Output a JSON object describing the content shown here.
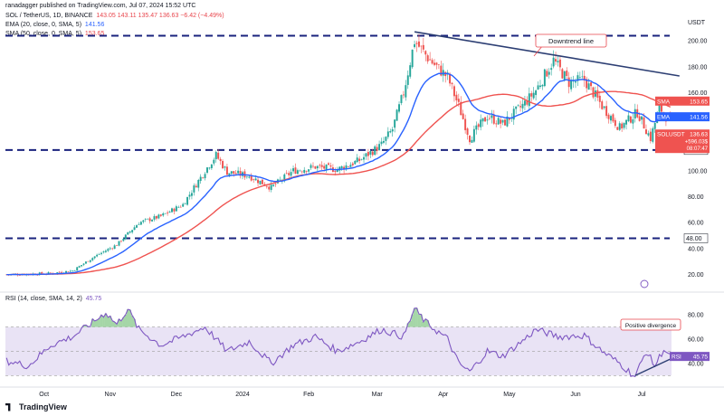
{
  "header": {
    "published": "ranadagger published on TradingView.com, Jul 07, 2024 15:52 UTC",
    "symbol_line": "SOL / TetherUS, 1D, BINANCE",
    "ohlc": "143.05  143.11  135.47  136.63  −6.42 (−4.49%)",
    "ema_line_label": "EMA (20, close, 0, SMA, 5)",
    "ema_line_value": "141.56",
    "sma_line_label": "SMA (50, close, 0, SMA, 5)",
    "sma_line_value": "153.65",
    "rsi_label": "RSI (14, close, SMA, 14, 2)",
    "rsi_value": "45.75",
    "currency": "USDT",
    "logo_text": "TradingView"
  },
  "colors": {
    "up": "#26a69a",
    "down": "#ef5350",
    "ema": "#2962ff",
    "sma": "#ef5350",
    "trend": "#2c3e73",
    "support": "#1a237e",
    "rsi": "#7e57c2",
    "rsi_band": "#e9e3f5"
  },
  "chart_data": [
    {
      "type": "candlestick",
      "title": "SOL / TetherUS, 1D, BINANCE",
      "x_labels": [
        "Oct",
        "Nov",
        "Dec",
        "2024",
        "Feb",
        "Mar",
        "Apr",
        "May",
        "Jun",
        "Jul"
      ],
      "price_ticks": [
        20,
        40,
        60,
        80,
        100,
        120,
        140,
        160,
        180,
        200
      ],
      "ylim": [
        10,
        212
      ],
      "anchors": [
        [
          0,
          20
        ],
        [
          20,
          21
        ],
        [
          30,
          23
        ],
        [
          40,
          34
        ],
        [
          50,
          43
        ],
        [
          60,
          60
        ],
        [
          70,
          65
        ],
        [
          80,
          74
        ],
        [
          90,
          100
        ],
        [
          95,
          112
        ],
        [
          100,
          99
        ],
        [
          110,
          96
        ],
        [
          120,
          87
        ],
        [
          130,
          100
        ],
        [
          140,
          103
        ],
        [
          150,
          101
        ],
        [
          160,
          108
        ],
        [
          170,
          120
        ],
        [
          175,
          132
        ],
        [
          180,
          160
        ],
        [
          185,
          200
        ],
        [
          192,
          185
        ],
        [
          200,
          172
        ],
        [
          205,
          150
        ],
        [
          210,
          125
        ],
        [
          218,
          142
        ],
        [
          225,
          136
        ],
        [
          235,
          152
        ],
        [
          240,
          162
        ],
        [
          248,
          185
        ],
        [
          255,
          168
        ],
        [
          262,
          170
        ],
        [
          270,
          150
        ],
        [
          278,
          133
        ],
        [
          286,
          145
        ],
        [
          292,
          125
        ],
        [
          296,
          149
        ],
        [
          301,
          137
        ]
      ],
      "candles_count": 302,
      "ema": {
        "name": "EMA",
        "last": "141.56"
      },
      "sma": {
        "name": "SMA",
        "last": "153.65"
      },
      "levels": [
        {
          "value": 204,
          "label": ""
        },
        {
          "value": 116,
          "label": "116.00"
        },
        {
          "value": 48,
          "label": "48.00"
        }
      ],
      "price_tags": [
        {
          "name": "SMA",
          "value": "153.65"
        },
        {
          "name": "EMA",
          "value": "141.56"
        },
        {
          "name": "SOLUSDT",
          "value": "136.63",
          "sub1": "+596.03$",
          "sub2": "08:07:47"
        }
      ],
      "annotations": [
        "Downtrend line",
        "Positive divergence"
      ]
    },
    {
      "type": "line",
      "title": "RSI (14, close, SMA, 14, 2)",
      "ticks": [
        40,
        60,
        80
      ],
      "ylim": [
        25,
        95
      ],
      "band": [
        30,
        70
      ],
      "last": "45.75",
      "anchors": [
        [
          0,
          42
        ],
        [
          10,
          38
        ],
        [
          20,
          55
        ],
        [
          30,
          62
        ],
        [
          40,
          75
        ],
        [
          45,
          82
        ],
        [
          50,
          72
        ],
        [
          55,
          85
        ],
        [
          60,
          68
        ],
        [
          70,
          55
        ],
        [
          80,
          62
        ],
        [
          90,
          70
        ],
        [
          100,
          50
        ],
        [
          110,
          58
        ],
        [
          120,
          40
        ],
        [
          130,
          55
        ],
        [
          140,
          62
        ],
        [
          150,
          50
        ],
        [
          160,
          58
        ],
        [
          170,
          68
        ],
        [
          180,
          62
        ],
        [
          185,
          85
        ],
        [
          190,
          74
        ],
        [
          200,
          60
        ],
        [
          205,
          40
        ],
        [
          210,
          33
        ],
        [
          218,
          50
        ],
        [
          225,
          46
        ],
        [
          235,
          60
        ],
        [
          240,
          68
        ],
        [
          250,
          62
        ],
        [
          262,
          63
        ],
        [
          270,
          50
        ],
        [
          278,
          40
        ],
        [
          285,
          29
        ],
        [
          290,
          50
        ],
        [
          294,
          38
        ],
        [
          298,
          52
        ],
        [
          301,
          45
        ]
      ]
    }
  ]
}
